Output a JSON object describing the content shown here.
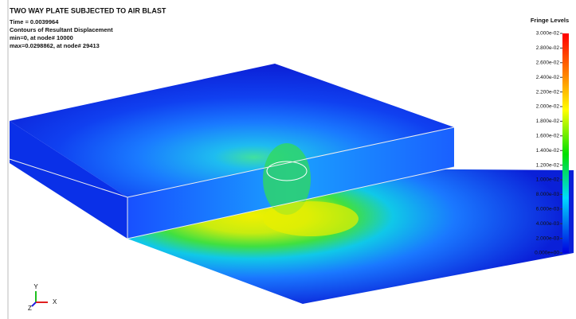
{
  "header": {
    "title": "TWO WAY PLATE SUBJECTED TO AIR BLAST",
    "lines": [
      "Time = 0.0039964",
      "Contours of Resultant Displacement",
      "min=0, at node# 10000",
      "max=0.0298862, at node# 29413"
    ]
  },
  "legend": {
    "title": "Fringe Levels",
    "levels": [
      "3.000e-02",
      "2.800e-02",
      "2.600e-02",
      "2.400e-02",
      "2.200e-02",
      "2.000e-02",
      "1.800e-02",
      "1.600e-02",
      "1.400e-02",
      "1.200e-02",
      "1.000e-02",
      "8.000e-03",
      "6.000e-03",
      "4.000e-03",
      "2.000e-03",
      "0.000e+00"
    ]
  },
  "triad": {
    "y": "Y",
    "z": "Z",
    "x": "X"
  }
}
